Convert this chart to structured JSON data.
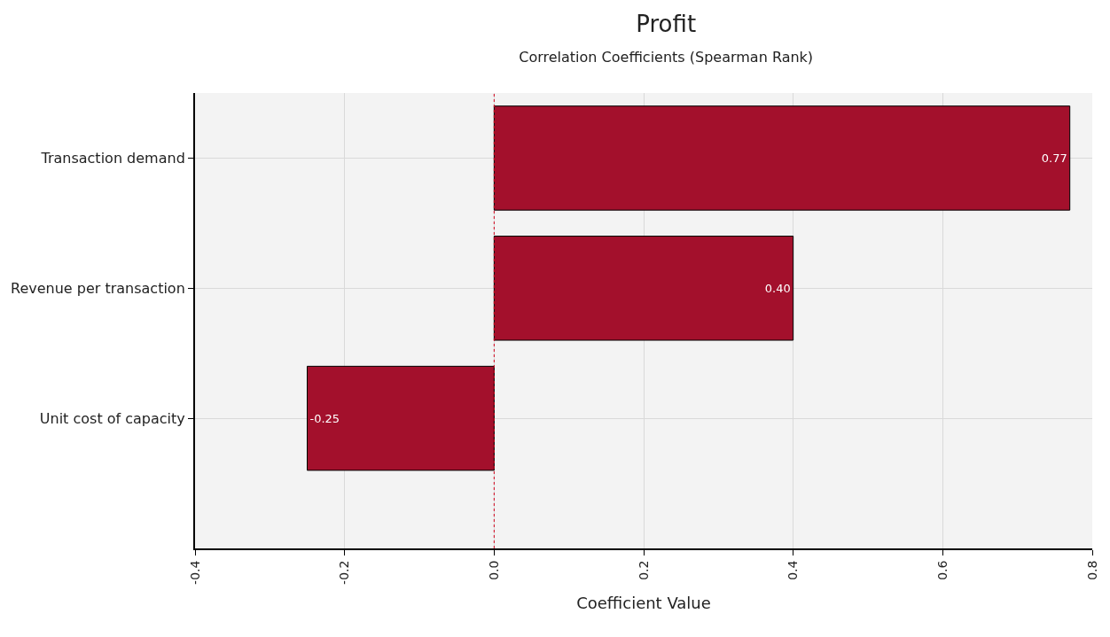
{
  "chart_data": {
    "type": "bar",
    "orientation": "horizontal",
    "title": "Profit",
    "subtitle": "Correlation Coefficients (Spearman Rank)",
    "xlabel": "Coefficient Value",
    "categories": [
      "Transaction demand",
      "Revenue per transaction",
      "Unit cost of capacity"
    ],
    "values": [
      0.77,
      0.4,
      -0.25
    ],
    "value_labels": [
      "0.77",
      "0.40",
      "-0.25"
    ],
    "color": "#a3102c",
    "xlim": [
      -0.4,
      0.8
    ],
    "xticks": [
      -0.4,
      -0.2,
      {
        "value": 0,
        "label": "0.0"
      },
      0.2,
      0.4,
      0.6,
      0.8
    ],
    "ref_lines": [
      {
        "axis": "x",
        "value": 0,
        "color": "#d0021b",
        "line_style": "dotted"
      }
    ],
    "grid": true
  }
}
